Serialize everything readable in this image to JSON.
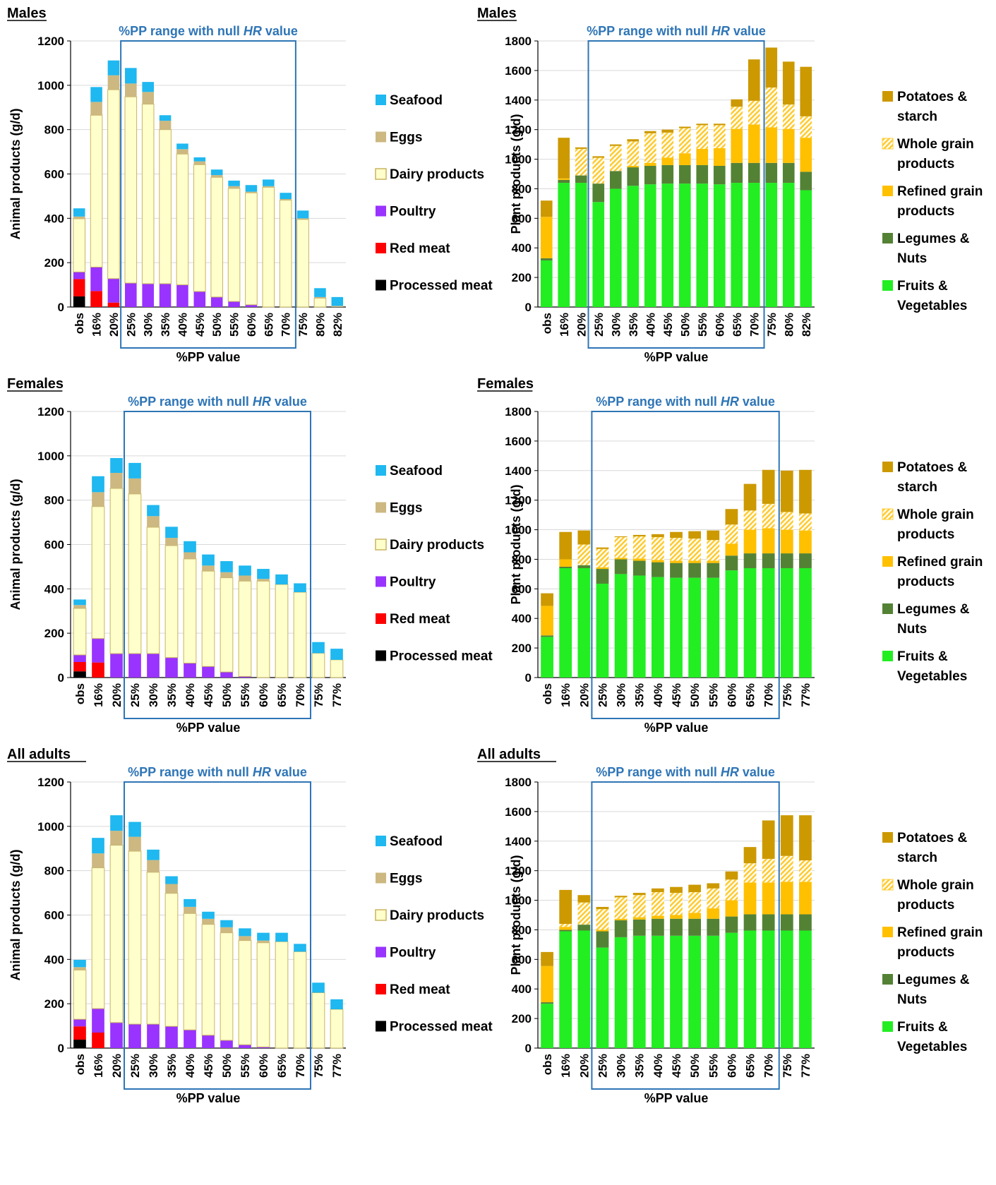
{
  "colors": {
    "processed_meat": "#000000",
    "red_meat": "#ff0000",
    "poultry": "#9933ff",
    "dairy": "#ffffcc",
    "dairy_border": "#c8b460",
    "eggs": "#ccb880",
    "seafood": "#1fb8f0",
    "fruits_veg": "#22ee22",
    "legumes_nuts": "#548235",
    "refined_grain": "#ffc000",
    "whole_grain": "#ffcc33",
    "potatoes": "#cc9900",
    "highlight_box": "#2e75b6"
  },
  "chart_data": [
    {
      "type": "bar",
      "stacked": true,
      "panel": "Males",
      "title": "%PP range with null HR value",
      "title_parts": [
        "%PP range with null ",
        "HR",
        " value"
      ],
      "xlabel": "%PP value",
      "ylabel": "Animal products (g/d)",
      "ylim": [
        0,
        1200
      ],
      "yticks": [
        "0",
        "200",
        "400",
        "600",
        "800",
        "1000",
        "1200"
      ],
      "grid": true,
      "legend_position": "right",
      "highlight_range": [
        "25%",
        "70%"
      ],
      "categories": [
        "obs",
        "16%",
        "20%",
        "25%",
        "30%",
        "35%",
        "40%",
        "45%",
        "50%",
        "55%",
        "60%",
        "65%",
        "70%",
        "75%",
        "80%",
        "82%"
      ],
      "series": [
        {
          "name": "Processed meat",
          "key": "processed_meat",
          "values": [
            48,
            0,
            0,
            0,
            0,
            0,
            0,
            0,
            0,
            0,
            0,
            0,
            0,
            0,
            0,
            0
          ]
        },
        {
          "name": "Red meat",
          "key": "red_meat",
          "values": [
            78,
            72,
            20,
            0,
            0,
            0,
            0,
            0,
            0,
            0,
            0,
            0,
            0,
            0,
            0,
            0
          ]
        },
        {
          "name": "Poultry",
          "key": "poultry",
          "values": [
            32,
            108,
            108,
            108,
            105,
            105,
            100,
            70,
            45,
            25,
            10,
            0,
            0,
            0,
            0,
            0
          ]
        },
        {
          "name": "Dairy products",
          "key": "dairy",
          "values": [
            240,
            685,
            852,
            840,
            810,
            695,
            590,
            572,
            540,
            510,
            505,
            540,
            482,
            395,
            40,
            0
          ]
        },
        {
          "name": "Eggs",
          "key": "eggs",
          "values": [
            10,
            60,
            65,
            60,
            55,
            40,
            22,
            15,
            10,
            10,
            5,
            5,
            5,
            5,
            5,
            5
          ]
        },
        {
          "name": "Seafood",
          "key": "seafood",
          "values": [
            37,
            67,
            67,
            70,
            45,
            25,
            25,
            18,
            25,
            25,
            30,
            30,
            28,
            35,
            40,
            40
          ]
        }
      ]
    },
    {
      "type": "bar",
      "stacked": true,
      "panel": "Males",
      "title": "%PP range with null HR value",
      "title_parts": [
        "%PP range with null ",
        "HR",
        " value"
      ],
      "xlabel": "%PP value",
      "ylabel": "Plant products (g/d)",
      "ylim": [
        0,
        1800
      ],
      "yticks": [
        "0",
        "200",
        "400",
        "600",
        "800",
        "1000",
        "1200",
        "1400",
        "1600",
        "1800"
      ],
      "grid": true,
      "legend_position": "right",
      "highlight_range": [
        "25%",
        "70%"
      ],
      "categories": [
        "obs",
        "16%",
        "20%",
        "25%",
        "30%",
        "35%",
        "40%",
        "45%",
        "50%",
        "55%",
        "60%",
        "65%",
        "70%",
        "75%",
        "80%",
        "82%"
      ],
      "series": [
        {
          "name": "Fruits & Vegetables",
          "key": "fruits_veg",
          "values": [
            315,
            840,
            840,
            710,
            800,
            820,
            830,
            835,
            835,
            835,
            830,
            840,
            840,
            840,
            840,
            790
          ]
        },
        {
          "name": "Legumes & Nuts",
          "key": "legumes_nuts",
          "values": [
            15,
            20,
            50,
            125,
            120,
            125,
            125,
            125,
            125,
            125,
            125,
            135,
            135,
            135,
            135,
            125
          ]
        },
        {
          "name": "Refined grain products",
          "key": "refined_grain",
          "values": [
            280,
            10,
            0,
            0,
            0,
            10,
            20,
            50,
            80,
            110,
            120,
            230,
            260,
            240,
            230,
            230
          ]
        },
        {
          "name": "Whole grain products",
          "key": "whole_grain",
          "values": [
            0,
            0,
            180,
            175,
            170,
            165,
            200,
            170,
            170,
            160,
            155,
            150,
            160,
            270,
            165,
            145
          ]
        },
        {
          "name": "Potatoes & starch",
          "key": "potatoes",
          "values": [
            110,
            275,
            10,
            10,
            10,
            15,
            15,
            20,
            10,
            10,
            10,
            50,
            280,
            270,
            290,
            335
          ]
        }
      ]
    },
    {
      "type": "bar",
      "stacked": true,
      "panel": "Females",
      "title": "%PP range with null HR value",
      "title_parts": [
        "%PP range with null ",
        "HR",
        " value"
      ],
      "xlabel": "%PP value",
      "ylabel": "Animal products (g/d)",
      "ylim": [
        0,
        1200
      ],
      "yticks": [
        "0",
        "200",
        "400",
        "600",
        "800",
        "1000",
        "1200"
      ],
      "grid": true,
      "legend_position": "right",
      "highlight_range": [
        "25%",
        "70%"
      ],
      "categories": [
        "obs",
        "16%",
        "20%",
        "25%",
        "30%",
        "35%",
        "40%",
        "45%",
        "50%",
        "55%",
        "60%",
        "65%",
        "70%",
        "75%",
        "77%"
      ],
      "series": [
        {
          "name": "Processed meat",
          "key": "processed_meat",
          "values": [
            28,
            0,
            0,
            0,
            0,
            0,
            0,
            0,
            0,
            0,
            0,
            0,
            0,
            0,
            0
          ]
        },
        {
          "name": "Red meat",
          "key": "red_meat",
          "values": [
            42,
            68,
            0,
            0,
            0,
            0,
            0,
            0,
            0,
            0,
            0,
            0,
            0,
            0,
            0
          ]
        },
        {
          "name": "Poultry",
          "key": "poultry",
          "values": [
            32,
            108,
            108,
            108,
            108,
            90,
            65,
            50,
            25,
            5,
            0,
            0,
            0,
            0,
            0
          ]
        },
        {
          "name": "Dairy products",
          "key": "dairy",
          "values": [
            210,
            595,
            745,
            720,
            570,
            505,
            470,
            430,
            425,
            430,
            435,
            420,
            385,
            110,
            80
          ]
        },
        {
          "name": "Eggs",
          "key": "eggs",
          "values": [
            15,
            65,
            70,
            70,
            50,
            35,
            30,
            25,
            25,
            25,
            10,
            0,
            0,
            0,
            0
          ]
        },
        {
          "name": "Seafood",
          "key": "seafood",
          "values": [
            25,
            72,
            67,
            70,
            50,
            50,
            50,
            50,
            50,
            45,
            45,
            45,
            40,
            50,
            50
          ]
        }
      ]
    },
    {
      "type": "bar",
      "stacked": true,
      "panel": "Females",
      "title": "%PP range with null HR value",
      "title_parts": [
        "%PP range with null ",
        "HR",
        " value"
      ],
      "xlabel": "%PP value",
      "ylabel": "Plant products (g/d)",
      "ylim": [
        0,
        1800
      ],
      "yticks": [
        "0",
        "200",
        "400",
        "600",
        "800",
        "1000",
        "1200",
        "1400",
        "1600",
        "1800"
      ],
      "grid": true,
      "legend_position": "right",
      "highlight_range": [
        "25%",
        "70%"
      ],
      "categories": [
        "obs",
        "16%",
        "20%",
        "25%",
        "30%",
        "35%",
        "40%",
        "45%",
        "50%",
        "55%",
        "60%",
        "65%",
        "70%",
        "75%",
        "77%"
      ],
      "series": [
        {
          "name": "Fruits & Vegetables",
          "key": "fruits_veg",
          "values": [
            275,
            740,
            740,
            635,
            700,
            690,
            680,
            675,
            675,
            675,
            725,
            740,
            740,
            740,
            740
          ]
        },
        {
          "name": "Legumes & Nuts",
          "key": "legumes_nuts",
          "values": [
            10,
            10,
            20,
            100,
            100,
            100,
            100,
            100,
            100,
            100,
            100,
            100,
            100,
            100,
            100
          ]
        },
        {
          "name": "Refined grain products",
          "key": "refined_grain",
          "values": [
            200,
            50,
            0,
            10,
            10,
            15,
            15,
            15,
            15,
            15,
            80,
            160,
            170,
            160,
            155
          ]
        },
        {
          "name": "Whole grain products",
          "key": "whole_grain",
          "values": [
            0,
            0,
            140,
            125,
            140,
            150,
            155,
            155,
            150,
            140,
            130,
            130,
            165,
            120,
            115
          ]
        },
        {
          "name": "Potatoes & starch",
          "key": "potatoes",
          "values": [
            85,
            185,
            95,
            10,
            5,
            10,
            20,
            40,
            50,
            65,
            105,
            180,
            230,
            280,
            295
          ]
        }
      ]
    },
    {
      "type": "bar",
      "stacked": true,
      "panel": "All adults",
      "title": "%PP range with null HR value",
      "title_parts": [
        "%PP range with null ",
        "HR",
        " value"
      ],
      "xlabel": "%PP value",
      "ylabel": "Animal products (g/d)",
      "ylim": [
        0,
        1200
      ],
      "yticks": [
        "0",
        "200",
        "400",
        "600",
        "800",
        "1000",
        "1200"
      ],
      "grid": true,
      "legend_position": "right",
      "highlight_range": [
        "25%",
        "70%"
      ],
      "categories": [
        "obs",
        "16%",
        "20%",
        "25%",
        "30%",
        "35%",
        "40%",
        "45%",
        "50%",
        "55%",
        "60%",
        "65%",
        "70%",
        "75%",
        "77%"
      ],
      "series": [
        {
          "name": "Processed meat",
          "key": "processed_meat",
          "values": [
            38,
            0,
            0,
            0,
            0,
            0,
            0,
            0,
            0,
            0,
            0,
            0,
            0,
            0,
            0
          ]
        },
        {
          "name": "Red meat",
          "key": "red_meat",
          "values": [
            60,
            70,
            0,
            0,
            0,
            0,
            0,
            0,
            0,
            0,
            0,
            0,
            0,
            0,
            0
          ]
        },
        {
          "name": "Poultry",
          "key": "poultry",
          "values": [
            32,
            108,
            115,
            108,
            108,
            98,
            82,
            58,
            35,
            15,
            5,
            0,
            0,
            0,
            0
          ]
        },
        {
          "name": "Dairy products",
          "key": "dairy",
          "values": [
            222,
            635,
            800,
            780,
            685,
            600,
            525,
            500,
            485,
            470,
            470,
            480,
            435,
            250,
            175
          ]
        },
        {
          "name": "Eggs",
          "key": "eggs",
          "values": [
            13,
            65,
            65,
            65,
            55,
            42,
            30,
            25,
            25,
            20,
            10,
            0,
            0,
            0,
            0
          ]
        },
        {
          "name": "Seafood",
          "key": "seafood",
          "values": [
            33,
            70,
            70,
            67,
            47,
            35,
            35,
            32,
            32,
            35,
            35,
            40,
            35,
            45,
            45
          ]
        }
      ]
    },
    {
      "type": "bar",
      "stacked": true,
      "panel": "All adults",
      "title": "%PP range with null HR value",
      "title_parts": [
        "%PP range with null ",
        "HR",
        " value"
      ],
      "xlabel": "%PP value",
      "ylabel": "Plant products (g/d)",
      "ylim": [
        0,
        1800
      ],
      "yticks": [
        "0",
        "200",
        "400",
        "600",
        "800",
        "1000",
        "1200",
        "1400",
        "1600",
        "1800"
      ],
      "grid": true,
      "legend_position": "right",
      "highlight_range": [
        "25%",
        "70%"
      ],
      "categories": [
        "obs",
        "16%",
        "20%",
        "25%",
        "30%",
        "35%",
        "40%",
        "45%",
        "50%",
        "55%",
        "60%",
        "65%",
        "70%",
        "75%",
        "77%"
      ],
      "series": [
        {
          "name": "Fruits & Vegetables",
          "key": "fruits_veg",
          "values": [
            300,
            790,
            795,
            680,
            750,
            760,
            760,
            760,
            760,
            760,
            780,
            795,
            795,
            795,
            795
          ]
        },
        {
          "name": "Legumes & Nuts",
          "key": "legumes_nuts",
          "values": [
            10,
            10,
            40,
            110,
            115,
            110,
            115,
            115,
            115,
            115,
            110,
            110,
            110,
            110,
            110
          ]
        },
        {
          "name": "Refined grain products",
          "key": "refined_grain",
          "values": [
            245,
            20,
            0,
            10,
            10,
            15,
            20,
            25,
            40,
            70,
            110,
            215,
            215,
            220,
            220
          ]
        },
        {
          "name": "Whole grain products",
          "key": "whole_grain",
          "values": [
            0,
            20,
            150,
            140,
            145,
            150,
            160,
            150,
            140,
            135,
            140,
            130,
            160,
            175,
            145
          ]
        },
        {
          "name": "Potatoes & starch",
          "key": "potatoes",
          "values": [
            95,
            230,
            50,
            15,
            10,
            15,
            25,
            40,
            50,
            35,
            55,
            110,
            260,
            275,
            305
          ]
        }
      ]
    }
  ]
}
